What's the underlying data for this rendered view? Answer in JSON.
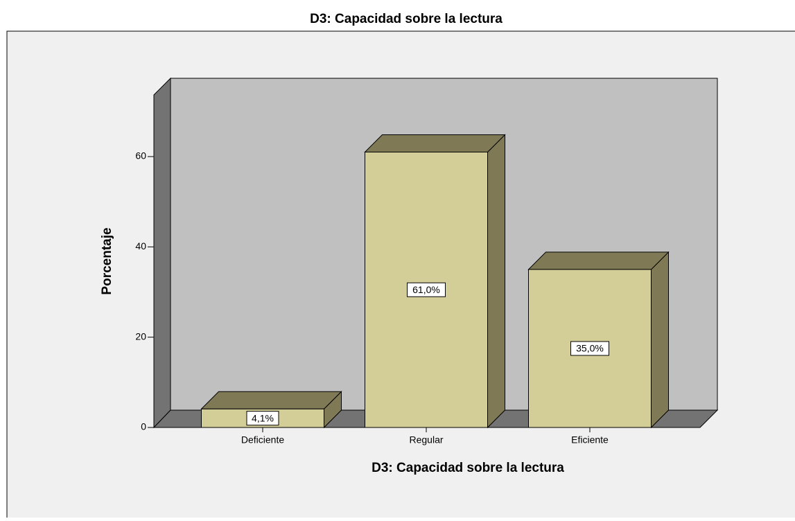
{
  "chart_data": {
    "type": "bar3d",
    "title": "D3: Capacidad  sobre la lectura",
    "x_label": "D3: Capacidad  sobre la lectura",
    "y_label": "Porcentaje",
    "categories": [
      "Deficiente",
      "Regular",
      "Eficiente"
    ],
    "values": [
      4.1,
      61.0,
      35.0
    ],
    "value_labels": [
      "4,1%",
      "61,0%",
      "35,0%"
    ],
    "color": "#d3cd98",
    "ylim": [
      0,
      73
    ],
    "yticks": [
      0,
      20,
      40,
      60
    ],
    "grid": false
  }
}
